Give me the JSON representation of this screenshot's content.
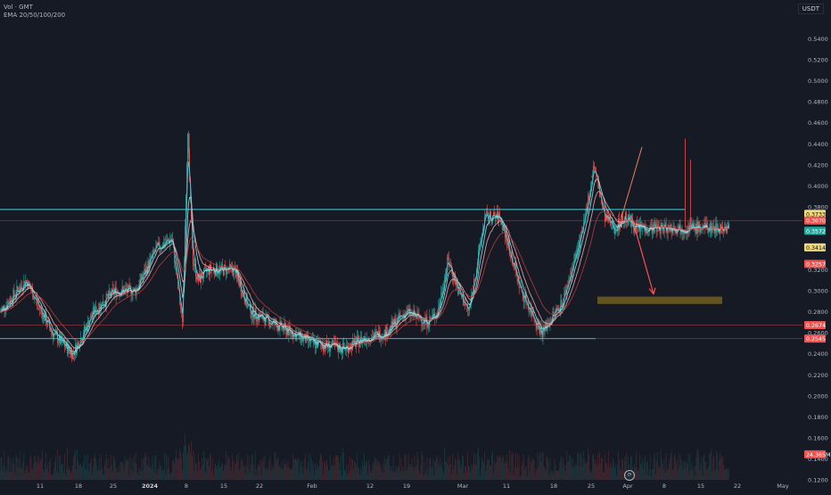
{
  "header": {
    "line1": "Vol · GMT",
    "line2": "EMA 20/50/100/200"
  },
  "currency": "USDT",
  "colors": {
    "background": "#161a25",
    "up": "#26a69a",
    "down": "#ef5350",
    "cyan_line": "#4dd0e1",
    "red_line": "#d64545",
    "target_zone": "#6b5a1e",
    "arrow": "#ff5252",
    "trend": "#e57e5b"
  },
  "y_axis": {
    "ticks": [
      "0.5400",
      "0.5200",
      "0.5000",
      "0.4800",
      "0.4600",
      "0.4400",
      "0.4200",
      "0.4000",
      "0.3800",
      "0.3200",
      "0.3000",
      "0.2800",
      "0.2400",
      "0.2200",
      "0.2000",
      "0.1800",
      "0.1600",
      "0.1400",
      "0.1200"
    ],
    "tick_values": [
      0.54,
      0.52,
      0.5,
      0.48,
      0.46,
      0.44,
      0.42,
      0.4,
      0.38,
      0.32,
      0.3,
      0.28,
      0.24,
      0.22,
      0.2,
      0.18,
      0.16,
      0.14,
      0.12
    ],
    "range": [
      0.12,
      0.56
    ],
    "price_tags": [
      {
        "label": "0.3733",
        "value": 0.3733,
        "color": "#f0d97a",
        "text": "#111"
      },
      {
        "label": "0.3670",
        "value": 0.367,
        "color": "#ef5350",
        "text": "#fff"
      },
      {
        "label": "0.3572",
        "value": 0.3572,
        "color": "#26a69a",
        "text": "#fff"
      },
      {
        "label": "0.3414",
        "value": 0.3414,
        "color": "#f0d97a",
        "text": "#111"
      },
      {
        "label": "0.3257",
        "value": 0.3257,
        "color": "#ef5350",
        "text": "#fff"
      },
      {
        "label": "0.2674",
        "value": 0.2674,
        "color": "#ef5350",
        "text": "#fff"
      },
      {
        "label": "0.2545",
        "value": 0.2545,
        "color": "#ef5350",
        "text": "#fff"
      },
      {
        "label": "24.365M",
        "value": 0.1443,
        "color": "#ef5350",
        "text": "#fff"
      }
    ],
    "extra_tick": {
      "label": "0.2600",
      "value": 0.26
    }
  },
  "x_axis": {
    "ticks": [
      "11",
      "18",
      "25",
      "2024",
      "8",
      "15",
      "22",
      "Feb",
      "12",
      "19",
      "Mar",
      "11",
      "18",
      "25",
      "Apr",
      "8",
      "15",
      "22",
      "May"
    ],
    "bold": [
      "2024"
    ]
  },
  "chart_data": {
    "type": "line",
    "title": "",
    "xlabel": "",
    "ylabel": "",
    "x_range_days": [
      0,
      154
    ],
    "ylim": [
      0.12,
      0.56
    ],
    "price_series_approx": {
      "name": "",
      "x": [
        0,
        5,
        10,
        14,
        18,
        22,
        26,
        30,
        33,
        35,
        36,
        37,
        38,
        40,
        42,
        45,
        48,
        52,
        56,
        60,
        66,
        70,
        74,
        78,
        82,
        84,
        86,
        88,
        90,
        93,
        96,
        100,
        104,
        108,
        112,
        114,
        116,
        118,
        119,
        120,
        122,
        124,
        126,
        128,
        130,
        132,
        134,
        136,
        138,
        139,
        140
      ],
      "y": [
        0.28,
        0.31,
        0.26,
        0.24,
        0.28,
        0.3,
        0.3,
        0.34,
        0.35,
        0.27,
        0.45,
        0.33,
        0.31,
        0.32,
        0.32,
        0.32,
        0.28,
        0.27,
        0.26,
        0.25,
        0.245,
        0.255,
        0.26,
        0.28,
        0.27,
        0.28,
        0.33,
        0.3,
        0.28,
        0.37,
        0.37,
        0.3,
        0.26,
        0.29,
        0.36,
        0.42,
        0.37,
        0.36,
        0.365,
        0.37,
        0.36,
        0.36,
        0.36,
        0.36,
        0.36,
        0.36,
        0.36,
        0.36,
        0.36,
        0.36,
        0.36
      ]
    },
    "ema_series": [
      {
        "name": "",
        "color": "#4dd0e1"
      },
      {
        "name": "",
        "color": "#a7d8de"
      },
      {
        "name": "",
        "color": "#e8a6a6"
      },
      {
        "name": "",
        "color": "#b23b3b"
      }
    ],
    "horizontal_levels": [
      {
        "value": 0.3775,
        "color": "#4dd0e1"
      },
      {
        "value": 0.2545,
        "color": "#4dd0e1"
      }
    ],
    "target_zone": [
      0.2875,
      0.2945
    ],
    "grid": false
  }
}
